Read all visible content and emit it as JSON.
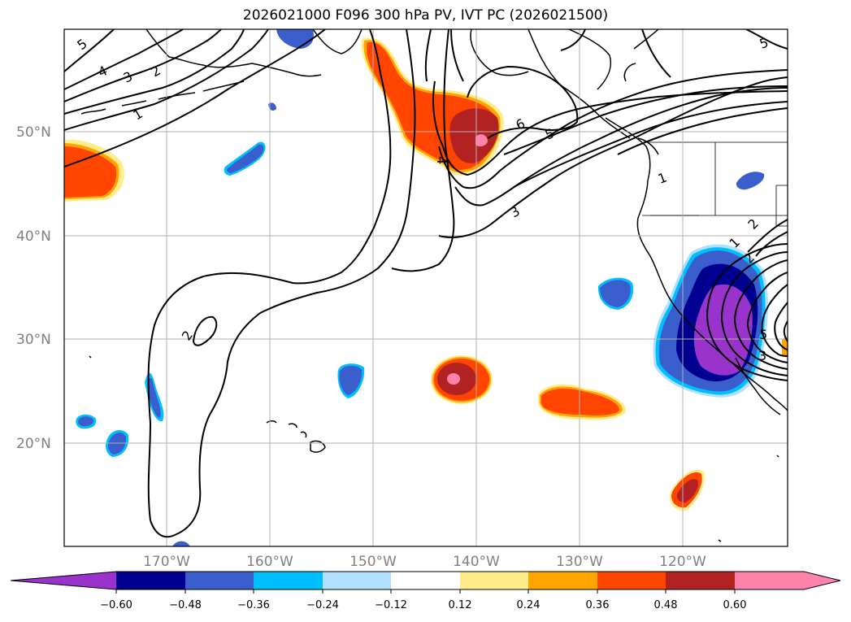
{
  "title": "2026021000 F096 300 hPa PV, IVT PC (2026021500)",
  "map": {
    "lat_labels": [
      "50°N",
      "40°N",
      "30°N",
      "20°N"
    ],
    "lon_labels": [
      "170°W",
      "160°W",
      "150°W",
      "140°W",
      "130°W",
      "120°W"
    ],
    "gridlines": true,
    "region": "North Pacific / US West Coast"
  },
  "colorbar": {
    "tick_labels": [
      "−0.60",
      "−0.48",
      "−0.36",
      "−0.24",
      "−0.12",
      "0.12",
      "0.24",
      "0.36",
      "0.48",
      "0.60"
    ],
    "colors": [
      "#9933cc",
      "#000090",
      "#3a5fcd",
      "#00bfff",
      "#b0e2ff",
      "#ffffff",
      "#ffec8b",
      "#ffa500",
      "#ff4500",
      "#b22222",
      "#ff82ab"
    ],
    "extend": "both"
  },
  "contour_labels": [
    "5",
    "4",
    "3",
    "2",
    "1",
    "6",
    "5",
    "4",
    "3",
    "1",
    "2",
    "1",
    "2",
    "5",
    "3",
    "2",
    "5"
  ],
  "colors": {
    "land_line": "#000000",
    "contour": "#000000",
    "grid": "#b0b0b0"
  }
}
